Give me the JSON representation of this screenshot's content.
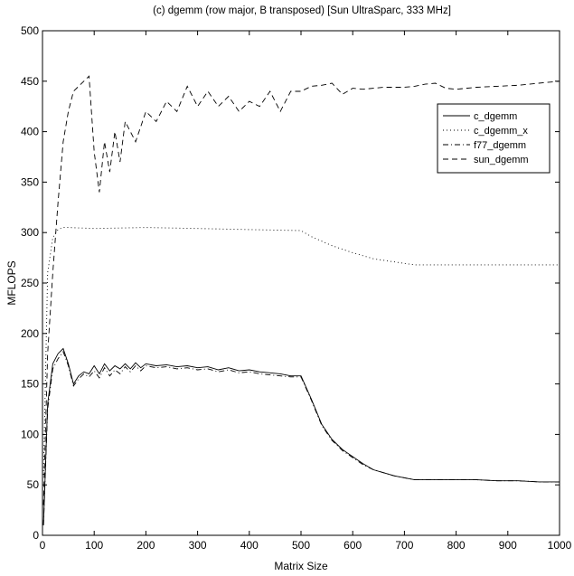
{
  "chart_data": {
    "type": "line",
    "title": "(c) dgemm (row major, B transposed) [Sun UltraSparc, 333 MHz]",
    "xlabel": "Matrix Size",
    "ylabel": "MFLOPS",
    "xlim": [
      0,
      1000
    ],
    "ylim": [
      0,
      500
    ],
    "xticks": [
      0,
      100,
      200,
      300,
      400,
      500,
      600,
      700,
      800,
      900,
      1000
    ],
    "yticks": [
      0,
      50,
      100,
      150,
      200,
      250,
      300,
      350,
      400,
      450,
      500
    ],
    "grid": false,
    "legend_position": "top-right",
    "series": [
      {
        "name": "c_dgemm",
        "style": "solid",
        "x": [
          2,
          10,
          20,
          30,
          40,
          50,
          60,
          70,
          80,
          90,
          100,
          110,
          120,
          130,
          140,
          150,
          160,
          170,
          180,
          190,
          200,
          220,
          240,
          260,
          280,
          300,
          320,
          340,
          360,
          380,
          400,
          420,
          440,
          460,
          480,
          500,
          520,
          540,
          560,
          580,
          600,
          620,
          640,
          660,
          680,
          700,
          720,
          760,
          800,
          840,
          880,
          920,
          960,
          1000
        ],
        "y": [
          10,
          130,
          170,
          180,
          185,
          170,
          150,
          158,
          162,
          160,
          168,
          160,
          170,
          163,
          168,
          165,
          170,
          165,
          171,
          166,
          170,
          168,
          169,
          167,
          168,
          166,
          167,
          164,
          166,
          163,
          164,
          162,
          161,
          160,
          158,
          158,
          135,
          110,
          95,
          85,
          78,
          71,
          65,
          62,
          59,
          57,
          55,
          55,
          55,
          55,
          54,
          54,
          53,
          53
        ]
      },
      {
        "name": "c_dgemm_x",
        "style": "dotted",
        "x": [
          2,
          10,
          20,
          30,
          40,
          50,
          100,
          200,
          300,
          400,
          500,
          520,
          560,
          600,
          640,
          680,
          720,
          800,
          900,
          1000
        ],
        "y": [
          60,
          260,
          295,
          303,
          305,
          305,
          304,
          305,
          304,
          303,
          302,
          296,
          287,
          280,
          274,
          271,
          268,
          268,
          268,
          268
        ]
      },
      {
        "name": "f77_dgemm",
        "style": "dashdot",
        "x": [
          2,
          10,
          20,
          30,
          40,
          50,
          60,
          70,
          80,
          90,
          100,
          110,
          120,
          130,
          140,
          150,
          160,
          170,
          180,
          190,
          200,
          220,
          240,
          260,
          280,
          300,
          320,
          340,
          360,
          380,
          400,
          420,
          440,
          460,
          480,
          500,
          520,
          540,
          560,
          580,
          600,
          620,
          640,
          660,
          680,
          700,
          720,
          760,
          800,
          840,
          880,
          920,
          960,
          1000
        ],
        "y": [
          10,
          125,
          165,
          175,
          182,
          168,
          148,
          155,
          160,
          157,
          163,
          156,
          166,
          158,
          164,
          160,
          167,
          162,
          168,
          163,
          168,
          166,
          167,
          165,
          166,
          164,
          165,
          162,
          164,
          161,
          162,
          160,
          159,
          158,
          157,
          157,
          134,
          109,
          94,
          84,
          77,
          70,
          65,
          62,
          59,
          57,
          55,
          55,
          55,
          55,
          54,
          54,
          53,
          53
        ]
      },
      {
        "name": "sun_dgemm",
        "style": "dashed",
        "x": [
          2,
          10,
          20,
          30,
          40,
          50,
          60,
          70,
          80,
          90,
          100,
          110,
          120,
          130,
          140,
          150,
          160,
          180,
          200,
          220,
          240,
          260,
          280,
          300,
          320,
          340,
          360,
          380,
          400,
          420,
          440,
          460,
          480,
          500,
          520,
          540,
          560,
          580,
          600,
          620,
          640,
          660,
          680,
          700,
          720,
          740,
          760,
          780,
          800,
          840,
          880,
          920,
          960,
          1000
        ],
        "y": [
          30,
          180,
          260,
          330,
          390,
          420,
          440,
          445,
          450,
          455,
          380,
          340,
          390,
          360,
          400,
          370,
          410,
          390,
          420,
          410,
          430,
          420,
          445,
          425,
          440,
          425,
          435,
          420,
          430,
          425,
          440,
          420,
          440,
          440,
          445,
          446,
          448,
          437,
          443,
          442,
          443,
          444,
          444,
          444,
          445,
          447,
          448,
          443,
          442,
          444,
          445,
          446,
          448,
          450
        ]
      }
    ]
  }
}
